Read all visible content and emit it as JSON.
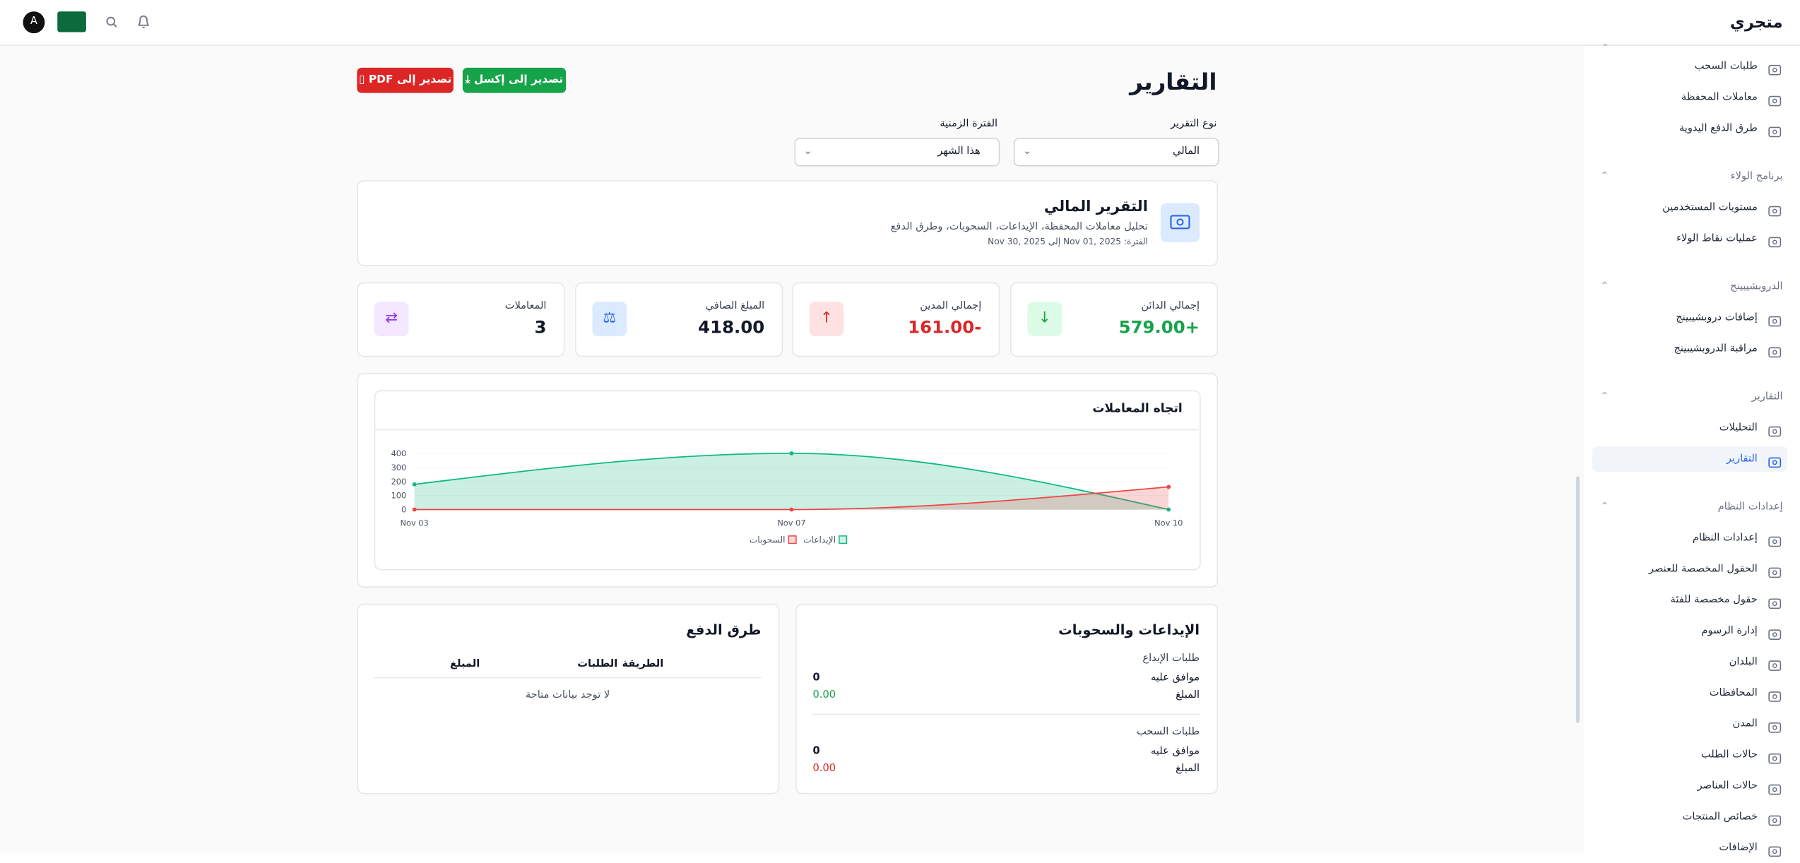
{
  "header": {
    "brand": "متجري",
    "avatar": "A"
  },
  "sidebar": {
    "items": [
      "طلبات السحب",
      "معاملات المحفظة",
      "طرق الدفع اليدوية"
    ],
    "sections": [
      {
        "title": "برنامج الولاء",
        "items": [
          "مستويات المستخدمين",
          "عمليات نقاط الولاء"
        ]
      },
      {
        "title": "الدروبشيبينج",
        "items": [
          "إضافات دروبشيبينج",
          "مراقبة الدروبشيبينج"
        ]
      },
      {
        "title": "التقارير",
        "items": [
          "التحليلات",
          "التقارير"
        ]
      },
      {
        "title": "إعدادات النظام",
        "items": [
          "إعدادات النظام",
          "الحقول المخصصة للعنصر",
          "حقول مخصصة للفئة",
          "إدارة الرسوم",
          "البلدان",
          "المحافظات",
          "المدن",
          "حالات الطلب",
          "حالات العناصر",
          "خصائص المنتجات",
          "الإضافات"
        ]
      }
    ]
  },
  "page": {
    "title": "التقارير",
    "export_excel": "تصدير إلى إكسل",
    "export_pdf": "تصدير إلى PDF"
  },
  "filters": [
    {
      "label": "نوع التقرير",
      "value": "المالي"
    },
    {
      "label": "الفترة الزمنية",
      "value": "هذا الشهر"
    }
  ],
  "report": {
    "title": "التقرير المالي",
    "description": "تحليل معاملات المحفظة، الإيداعات، السحوبات، وطرق الدفع",
    "period": "الفترة: Nov 01, 2025 إلى Nov 30, 2025"
  },
  "stats": [
    {
      "label": "إجمالي الدائن",
      "value": "+579.00"
    },
    {
      "label": "إجمالي المدين",
      "value": "-161.00"
    },
    {
      "label": "المبلغ الصافي",
      "value": "418.00"
    },
    {
      "label": "المعاملات",
      "value": "3"
    }
  ],
  "chart_data": {
    "type": "area",
    "title": "اتجاه المعاملات",
    "categories": [
      "Nov 03",
      "Nov 07",
      "Nov 10"
    ],
    "series": [
      {
        "name": "الإيداعات",
        "color": "#10b981",
        "values": [
          179,
          400,
          0
        ]
      },
      {
        "name": "السحوبات",
        "color": "#ef4444",
        "values": [
          0,
          0,
          161
        ]
      }
    ],
    "ylim": [
      0,
      400
    ],
    "yticks": [
      0,
      100,
      200,
      300,
      400
    ],
    "grid": true,
    "legend": "bottom"
  },
  "deposits_withdrawals": {
    "title": "الإيداعات والسحوبات",
    "groups": [
      {
        "title": "طلبات الإيداع",
        "approved_label": "موافق عليه",
        "approved": "0",
        "amount_label": "المبلغ",
        "amount": "0.00"
      },
      {
        "title": "طلبات السحب",
        "approved_label": "موافق عليه",
        "approved": "0",
        "amount_label": "المبلغ",
        "amount": "0.00"
      }
    ]
  },
  "payment_methods": {
    "title": "طرق الدفع",
    "columns": [
      "الطريقة",
      "الطلبات",
      "المبلغ"
    ],
    "empty": "لا توجد بيانات متاحة"
  }
}
